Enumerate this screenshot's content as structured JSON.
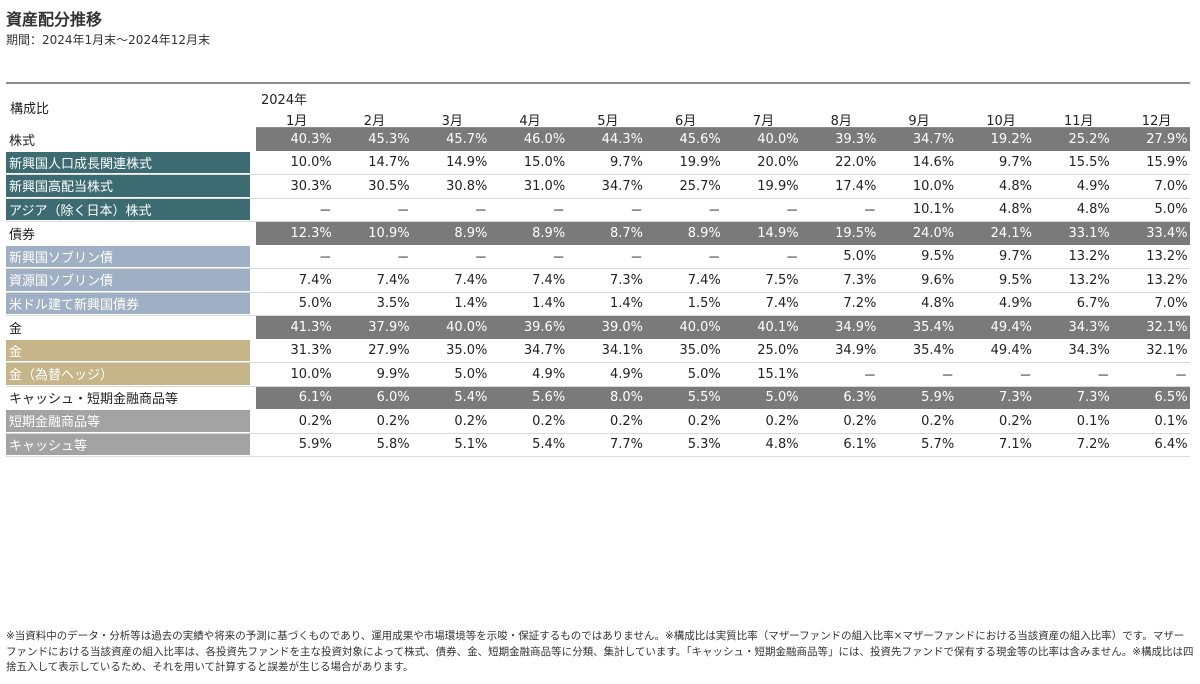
{
  "title": "資産配分推移",
  "period": "期間：2024年1月末～2024年12月末",
  "table": {
    "label": "構成比",
    "year": "2024年",
    "months": [
      "1月",
      "2月",
      "3月",
      "4月",
      "5月",
      "6月",
      "7月",
      "8月",
      "9月",
      "10月",
      "11月",
      "12月"
    ],
    "rows": [
      {
        "name": "株式",
        "type": "total",
        "group": "stock",
        "values": [
          "40.3%",
          "45.3%",
          "45.7%",
          "46.0%",
          "44.3%",
          "45.6%",
          "40.0%",
          "39.3%",
          "34.7%",
          "19.2%",
          "25.2%",
          "27.9%"
        ]
      },
      {
        "name": "新興国人口成長関連株式",
        "type": "sub",
        "group": "stock",
        "values": [
          "10.0%",
          "14.7%",
          "14.9%",
          "15.0%",
          "9.7%",
          "19.9%",
          "20.0%",
          "22.0%",
          "14.6%",
          "9.7%",
          "15.5%",
          "15.9%"
        ]
      },
      {
        "name": "新興国高配当株式",
        "type": "sub",
        "group": "stock",
        "values": [
          "30.3%",
          "30.5%",
          "30.8%",
          "31.0%",
          "34.7%",
          "25.7%",
          "19.9%",
          "17.4%",
          "10.0%",
          "4.8%",
          "4.9%",
          "7.0%"
        ]
      },
      {
        "name": "アジア（除く日本）株式",
        "type": "sub",
        "group": "stock",
        "values": [
          "－",
          "－",
          "－",
          "－",
          "－",
          "－",
          "－",
          "－",
          "10.1%",
          "4.8%",
          "4.8%",
          "5.0%"
        ]
      },
      {
        "name": "債券",
        "type": "total",
        "group": "bond",
        "values": [
          "12.3%",
          "10.9%",
          "8.9%",
          "8.9%",
          "8.7%",
          "8.9%",
          "14.9%",
          "19.5%",
          "24.0%",
          "24.1%",
          "33.1%",
          "33.4%"
        ]
      },
      {
        "name": "新興国ソブリン債",
        "type": "sub",
        "group": "bond",
        "values": [
          "－",
          "－",
          "－",
          "－",
          "－",
          "－",
          "－",
          "5.0%",
          "9.5%",
          "9.7%",
          "13.2%",
          "13.2%"
        ]
      },
      {
        "name": "資源国ソブリン債",
        "type": "sub",
        "group": "bond",
        "values": [
          "7.4%",
          "7.4%",
          "7.4%",
          "7.4%",
          "7.3%",
          "7.4%",
          "7.5%",
          "7.3%",
          "9.6%",
          "9.5%",
          "13.2%",
          "13.2%"
        ]
      },
      {
        "name": "米ドル建て新興国債券",
        "type": "sub",
        "group": "bond",
        "values": [
          "5.0%",
          "3.5%",
          "1.4%",
          "1.4%",
          "1.4%",
          "1.5%",
          "7.4%",
          "7.2%",
          "4.8%",
          "4.9%",
          "6.7%",
          "7.0%"
        ]
      },
      {
        "name": "金",
        "type": "total",
        "group": "gold",
        "values": [
          "41.3%",
          "37.9%",
          "40.0%",
          "39.6%",
          "39.0%",
          "40.0%",
          "40.1%",
          "34.9%",
          "35.4%",
          "49.4%",
          "34.3%",
          "32.1%"
        ]
      },
      {
        "name": "金",
        "type": "sub",
        "group": "gold",
        "values": [
          "31.3%",
          "27.9%",
          "35.0%",
          "34.7%",
          "34.1%",
          "35.0%",
          "25.0%",
          "34.9%",
          "35.4%",
          "49.4%",
          "34.3%",
          "32.1%"
        ]
      },
      {
        "name": "金（為替ヘッジ）",
        "type": "sub",
        "group": "gold",
        "values": [
          "10.0%",
          "9.9%",
          "5.0%",
          "4.9%",
          "4.9%",
          "5.0%",
          "15.1%",
          "－",
          "－",
          "－",
          "－",
          "－"
        ]
      },
      {
        "name": "キャッシュ・短期金融商品等",
        "type": "total",
        "group": "cash",
        "values": [
          "6.1%",
          "6.0%",
          "5.4%",
          "5.6%",
          "8.0%",
          "5.5%",
          "5.0%",
          "6.3%",
          "5.9%",
          "7.3%",
          "7.3%",
          "6.5%"
        ]
      },
      {
        "name": "短期金融商品等",
        "type": "sub",
        "group": "cash",
        "values": [
          "0.2%",
          "0.2%",
          "0.2%",
          "0.2%",
          "0.2%",
          "0.2%",
          "0.2%",
          "0.2%",
          "0.2%",
          "0.2%",
          "0.1%",
          "0.1%"
        ]
      },
      {
        "name": "キャッシュ等",
        "type": "sub",
        "group": "cash",
        "values": [
          "5.9%",
          "5.8%",
          "5.1%",
          "5.4%",
          "7.7%",
          "5.3%",
          "4.8%",
          "6.1%",
          "5.7%",
          "7.1%",
          "7.2%",
          "6.4%"
        ]
      }
    ]
  },
  "note": "※当資料中のデータ・分析等は過去の実績や将来の予測に基づくものであり、運用成果や市場環境等を示唆・保証するものではありません。※構成比は実質比率（マザーファンドの組入比率×マザーファンドにおける当該資産の組入比率）です。マザーファンドにおける当該資産の組入比率は、各投資先ファンドを主な投資対象によって株式、債券、金、短期金融商品等に分類、集計しています。「キャッシュ・短期金融商品等」には、投資先ファンドで保有する現金等の比率は含みません。※構成比は四捨五入して表示しているため、それを用いて計算すると誤差が生じる場合があります。"
}
